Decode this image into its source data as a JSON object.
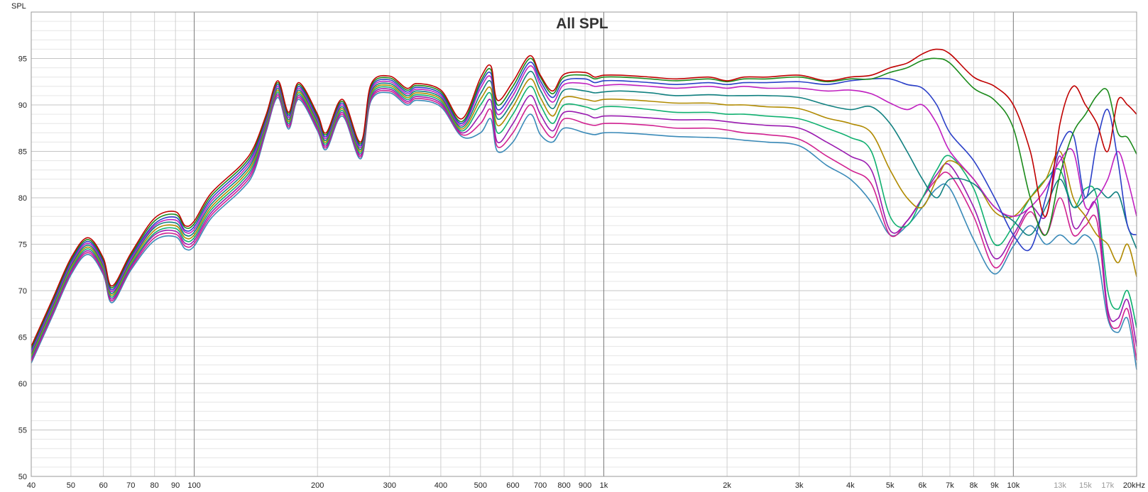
{
  "chart_data": {
    "type": "line",
    "title": "All SPL",
    "xlabel": "",
    "ylabel": "SPL",
    "x_scale": "log",
    "xlim": [
      40,
      20000
    ],
    "ylim": [
      50,
      100
    ],
    "grid": true,
    "legend": "none",
    "y_ticks": [
      {
        "value": 95,
        "label": "95"
      },
      {
        "value": 90,
        "label": "90"
      },
      {
        "value": 85,
        "label": "85"
      },
      {
        "value": 80,
        "label": "80"
      },
      {
        "value": 75,
        "label": "75"
      },
      {
        "value": 70,
        "label": "70"
      },
      {
        "value": 65,
        "label": "65"
      },
      {
        "value": 60,
        "label": "60"
      },
      {
        "value": 55,
        "label": "55"
      },
      {
        "value": 50,
        "label": "50"
      }
    ],
    "x_ticks": [
      {
        "value": 40,
        "label": "40"
      },
      {
        "value": 50,
        "label": "50"
      },
      {
        "value": 60,
        "label": "60"
      },
      {
        "value": 70,
        "label": "70"
      },
      {
        "value": 80,
        "label": "80"
      },
      {
        "value": 90,
        "label": "90"
      },
      {
        "value": 100,
        "label": "100"
      },
      {
        "value": 200,
        "label": "200"
      },
      {
        "value": 300,
        "label": "300"
      },
      {
        "value": 400,
        "label": "400"
      },
      {
        "value": 500,
        "label": "500"
      },
      {
        "value": 600,
        "label": "600"
      },
      {
        "value": 700,
        "label": "700"
      },
      {
        "value": 800,
        "label": "800"
      },
      {
        "value": 900,
        "label": "900"
      },
      {
        "value": 1000,
        "label": "1k"
      },
      {
        "value": 2000,
        "label": "2k"
      },
      {
        "value": 3000,
        "label": "3k"
      },
      {
        "value": 4000,
        "label": "4k"
      },
      {
        "value": 5000,
        "label": "5k"
      },
      {
        "value": 6000,
        "label": "6k"
      },
      {
        "value": 7000,
        "label": "7k"
      },
      {
        "value": 8000,
        "label": "8k"
      },
      {
        "value": 9000,
        "label": "9k"
      },
      {
        "value": 10000,
        "label": "10k"
      },
      {
        "value": 13000,
        "label": "13k",
        "faint": true
      },
      {
        "value": 15000,
        "label": "15k",
        "faint": true
      },
      {
        "value": 17000,
        "label": "17k",
        "faint": true
      },
      {
        "value": 20000,
        "label": "20kHz"
      }
    ],
    "x": [
      40,
      45,
      50,
      55,
      60,
      63,
      70,
      80,
      90,
      95,
      100,
      110,
      130,
      140,
      150,
      160,
      170,
      180,
      200,
      210,
      230,
      255,
      270,
      300,
      330,
      350,
      400,
      450,
      500,
      530,
      550,
      600,
      660,
      700,
      750,
      800,
      900,
      950,
      1000,
      1100,
      1300,
      1500,
      1800,
      2000,
      2200,
      2500,
      3000,
      3500,
      4000,
      4500,
      5000,
      5500,
      6000,
      6500,
      7000,
      8000,
      9000,
      10000,
      11000,
      12000,
      13000,
      14000,
      15000,
      16000,
      17000,
      18000,
      19000,
      20000
    ],
    "series": [
      {
        "color": "#c00000",
        "values": [
          64.0,
          69.0,
          73.5,
          75.7,
          73.5,
          70.5,
          74.0,
          77.8,
          78.5,
          77.0,
          77.5,
          80.5,
          83.5,
          85.5,
          89.0,
          92.6,
          89.2,
          92.4,
          89.0,
          87.0,
          90.6,
          86.0,
          92.2,
          93.1,
          91.8,
          92.3,
          91.6,
          88.5,
          92.9,
          94.2,
          90.5,
          92.5,
          95.3,
          93.2,
          91.5,
          93.3,
          93.5,
          93.0,
          93.2,
          93.2,
          93.0,
          92.8,
          93.0,
          92.6,
          93.0,
          93.0,
          93.2,
          92.6,
          93.0,
          93.2,
          94.0,
          94.5,
          95.5,
          96.0,
          95.5,
          93.0,
          92.0,
          90.0,
          85.0,
          78.0,
          88.0,
          92.0,
          90.0,
          88.0,
          85.0,
          90.5,
          90.0,
          89.0
        ]
      },
      {
        "color": "#1a8a1a",
        "values": [
          63.8,
          68.8,
          73.3,
          75.5,
          73.3,
          70.3,
          73.8,
          77.5,
          78.2,
          76.8,
          77.2,
          80.2,
          83.2,
          85.2,
          88.8,
          92.4,
          89.0,
          92.2,
          88.8,
          86.8,
          90.4,
          85.8,
          92.0,
          92.9,
          91.6,
          92.1,
          91.4,
          88.2,
          92.5,
          93.8,
          90.0,
          92.0,
          95.0,
          93.0,
          91.2,
          93.0,
          93.2,
          92.8,
          93.0,
          93.0,
          92.8,
          92.6,
          92.8,
          92.5,
          92.8,
          92.8,
          93.0,
          92.5,
          92.8,
          92.8,
          93.5,
          94.0,
          94.8,
          95.0,
          94.5,
          91.8,
          90.5,
          87.5,
          80.0,
          76.0,
          82.5,
          87.0,
          89.0,
          91.0,
          91.5,
          87.0,
          86.5,
          84.7
        ]
      },
      {
        "color": "#2a3fc8",
        "values": [
          63.6,
          68.6,
          73.1,
          75.3,
          73.1,
          70.1,
          73.6,
          77.2,
          77.9,
          76.5,
          76.9,
          79.9,
          82.9,
          84.9,
          88.6,
          92.2,
          88.8,
          92.0,
          88.6,
          86.6,
          90.2,
          85.6,
          91.8,
          92.7,
          91.4,
          91.9,
          91.2,
          88.0,
          92.2,
          93.4,
          89.5,
          91.5,
          94.6,
          92.6,
          90.8,
          92.6,
          92.8,
          92.4,
          92.6,
          92.6,
          92.4,
          92.2,
          92.4,
          92.2,
          92.4,
          92.4,
          92.5,
          92.2,
          92.6,
          92.8,
          92.8,
          92.2,
          91.8,
          90.0,
          87.0,
          84.0,
          80.0,
          76.0,
          74.5,
          80.0,
          85.5,
          86.8,
          80.0,
          86.0,
          89.5,
          84.0,
          77.0,
          76.0
        ]
      },
      {
        "color": "#c020c0",
        "values": [
          63.4,
          68.4,
          72.9,
          75.1,
          72.9,
          69.9,
          73.4,
          77.0,
          77.6,
          76.3,
          76.6,
          79.6,
          82.6,
          84.6,
          88.4,
          92.0,
          88.6,
          91.8,
          88.4,
          86.4,
          90.0,
          85.4,
          91.6,
          92.5,
          91.2,
          91.7,
          91.0,
          87.8,
          91.8,
          93.0,
          89.0,
          91.0,
          94.2,
          92.2,
          90.3,
          92.2,
          92.3,
          92.0,
          92.1,
          92.2,
          92.0,
          91.8,
          92.0,
          91.8,
          92.0,
          91.8,
          91.8,
          91.5,
          91.6,
          91.2,
          90.2,
          89.5,
          90.0,
          88.0,
          85.0,
          82.0,
          79.0,
          78.0,
          79.0,
          81.0,
          84.0,
          85.0,
          79.0,
          80.0,
          82.0,
          85.0,
          82.0,
          78.0
        ]
      },
      {
        "color": "#108080",
        "values": [
          63.2,
          68.2,
          72.7,
          74.9,
          72.7,
          69.7,
          73.2,
          76.8,
          77.3,
          76.0,
          76.3,
          79.3,
          82.3,
          84.3,
          88.2,
          91.8,
          88.4,
          91.6,
          88.2,
          86.2,
          89.8,
          85.2,
          91.4,
          92.3,
          91.0,
          91.5,
          90.8,
          87.6,
          91.2,
          92.5,
          88.5,
          90.4,
          93.6,
          91.6,
          89.6,
          91.6,
          91.5,
          91.3,
          91.4,
          91.5,
          91.3,
          91.0,
          91.1,
          91.0,
          91.0,
          91.0,
          90.8,
          90.0,
          89.5,
          89.8,
          88.0,
          85.0,
          82.0,
          80.0,
          82.0,
          81.5,
          79.0,
          77.5,
          76.0,
          79.0,
          82.0,
          79.0,
          80.0,
          81.0,
          80.0,
          80.5,
          77.0,
          74.5
        ]
      },
      {
        "color": "#b08a00",
        "values": [
          63.0,
          68.0,
          72.5,
          74.7,
          72.5,
          69.5,
          73.0,
          76.5,
          77.0,
          75.7,
          76.0,
          79.0,
          82.0,
          84.0,
          88.0,
          91.6,
          88.2,
          91.4,
          88.0,
          86.0,
          89.6,
          85.0,
          91.2,
          92.1,
          90.8,
          91.3,
          90.6,
          87.4,
          90.6,
          91.8,
          87.8,
          89.8,
          92.8,
          90.8,
          88.8,
          90.8,
          90.6,
          90.4,
          90.6,
          90.6,
          90.4,
          90.2,
          90.2,
          90.0,
          90.0,
          89.8,
          89.6,
          88.6,
          88.0,
          87.0,
          83.0,
          80.0,
          79.0,
          82.0,
          84.0,
          82.0,
          78.5,
          78.0,
          80.0,
          82.0,
          85.0,
          80.0,
          78.0,
          76.0,
          75.0,
          73.0,
          75.0,
          71.5
        ]
      },
      {
        "color": "#10b070",
        "values": [
          62.8,
          67.8,
          72.3,
          74.5,
          72.3,
          69.3,
          72.8,
          76.2,
          76.7,
          75.4,
          75.7,
          78.7,
          81.7,
          83.7,
          87.8,
          91.4,
          88.0,
          91.2,
          87.8,
          85.8,
          89.4,
          84.8,
          91.0,
          91.9,
          90.6,
          91.1,
          90.4,
          87.2,
          90.0,
          91.2,
          87.0,
          89.0,
          92.0,
          90.0,
          88.0,
          90.0,
          89.8,
          89.5,
          89.8,
          89.8,
          89.5,
          89.2,
          89.2,
          89.0,
          89.0,
          88.8,
          88.5,
          87.5,
          86.5,
          85.0,
          78.0,
          77.0,
          80.0,
          83.0,
          84.5,
          81.0,
          75.0,
          77.0,
          80.0,
          82.0,
          83.0,
          79.0,
          81.0,
          80.0,
          70.0,
          68.0,
          70.0,
          66.0
        ]
      },
      {
        "color": "#9a1ab0",
        "values": [
          62.6,
          67.6,
          72.1,
          74.3,
          72.1,
          69.1,
          72.6,
          76.0,
          76.4,
          75.1,
          75.4,
          78.4,
          81.4,
          83.4,
          87.6,
          91.2,
          87.8,
          91.0,
          87.6,
          85.6,
          89.2,
          84.6,
          90.8,
          91.7,
          90.4,
          90.9,
          90.2,
          87.0,
          89.0,
          90.5,
          86.0,
          88.0,
          91.0,
          89.0,
          87.2,
          89.2,
          89.0,
          88.6,
          88.8,
          88.8,
          88.6,
          88.4,
          88.4,
          88.2,
          88.0,
          87.8,
          87.5,
          86.0,
          84.5,
          83.0,
          76.5,
          77.5,
          80.0,
          82.5,
          83.5,
          79.0,
          73.5,
          76.0,
          79.0,
          78.0,
          84.5,
          77.0,
          78.0,
          79.0,
          68.0,
          67.0,
          69.0,
          64.0
        ]
      },
      {
        "color": "#d02090",
        "values": [
          62.4,
          67.4,
          71.9,
          74.1,
          71.9,
          68.9,
          72.4,
          75.7,
          76.1,
          74.8,
          75.1,
          78.1,
          81.1,
          83.1,
          87.4,
          91.0,
          87.6,
          90.8,
          87.4,
          85.4,
          89.0,
          84.4,
          90.6,
          91.5,
          90.2,
          90.7,
          90.0,
          86.8,
          88.0,
          89.5,
          85.5,
          87.0,
          90.0,
          88.0,
          86.5,
          88.5,
          88.0,
          87.8,
          88.0,
          88.0,
          87.8,
          87.5,
          87.5,
          87.3,
          87.0,
          86.8,
          86.3,
          84.5,
          83.0,
          81.5,
          76.0,
          77.5,
          80.0,
          82.0,
          82.5,
          78.0,
          72.5,
          75.5,
          78.5,
          76.0,
          80.0,
          76.0,
          77.0,
          77.5,
          67.5,
          66.0,
          68.0,
          62.5
        ]
      },
      {
        "color": "#3a8ab8",
        "values": [
          62.2,
          67.2,
          71.7,
          73.9,
          71.7,
          68.7,
          72.2,
          75.4,
          75.8,
          74.5,
          74.8,
          77.8,
          80.8,
          82.8,
          87.2,
          90.8,
          87.4,
          90.6,
          87.2,
          85.2,
          88.8,
          84.2,
          90.4,
          91.3,
          90.0,
          90.5,
          89.8,
          86.6,
          87.0,
          88.5,
          85.0,
          86.0,
          89.0,
          86.8,
          86.0,
          87.5,
          87.0,
          86.8,
          87.0,
          87.0,
          86.8,
          86.6,
          86.5,
          86.4,
          86.2,
          86.0,
          85.6,
          83.5,
          82.0,
          79.5,
          76.0,
          77.0,
          79.0,
          81.0,
          81.0,
          75.5,
          71.8,
          74.8,
          77.0,
          75.0,
          76.0,
          75.0,
          76.0,
          74.0,
          67.0,
          65.5,
          67.0,
          61.5
        ]
      }
    ]
  }
}
